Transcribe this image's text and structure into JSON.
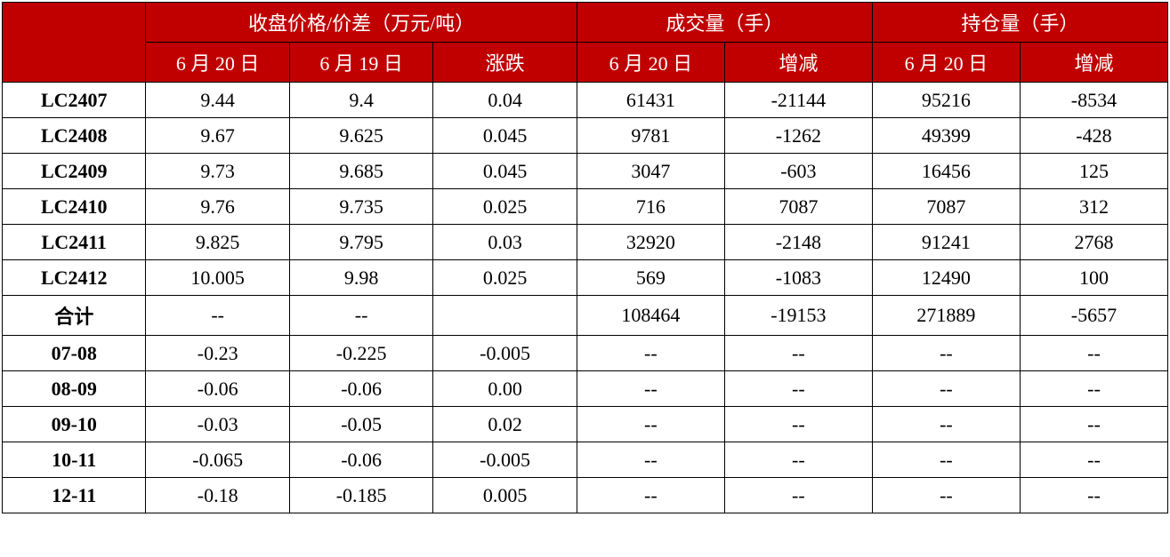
{
  "table": {
    "header_bg": "#c00000",
    "header_fg": "#ffffff",
    "border_color": "#000000",
    "font_family": "SimSun",
    "groups": [
      {
        "label": "收盘价格/价差（万元/吨）",
        "span": 3
      },
      {
        "label": "成交量（手）",
        "span": 2
      },
      {
        "label": "持仓量（手）",
        "span": 2
      }
    ],
    "sub_headers": [
      "6 月 20 日",
      "6 月 19 日",
      "涨跌",
      "6 月 20 日",
      "增减",
      "6 月 20 日",
      "增减"
    ],
    "rows": [
      {
        "label": "LC2407",
        "cells": [
          "9.44",
          "9.4",
          "0.04",
          "61431",
          "-21144",
          "95216",
          "-8534"
        ]
      },
      {
        "label": "LC2408",
        "cells": [
          "9.67",
          "9.625",
          "0.045",
          "9781",
          "-1262",
          "49399",
          "-428"
        ]
      },
      {
        "label": "LC2409",
        "cells": [
          "9.73",
          "9.685",
          "0.045",
          "3047",
          "-603",
          "16456",
          "125"
        ]
      },
      {
        "label": "LC2410",
        "cells": [
          "9.76",
          "9.735",
          "0.025",
          "716",
          "7087",
          "7087",
          "312"
        ]
      },
      {
        "label": "LC2411",
        "cells": [
          "9.825",
          "9.795",
          "0.03",
          "32920",
          "-2148",
          "91241",
          "2768"
        ]
      },
      {
        "label": "LC2412",
        "cells": [
          "10.005",
          "9.98",
          "0.025",
          "569",
          "-1083",
          "12490",
          "100"
        ]
      },
      {
        "label": "合计",
        "cells": [
          "--",
          "--",
          "",
          "108464",
          "-19153",
          "271889",
          "-5657"
        ]
      },
      {
        "label": "07-08",
        "cells": [
          "-0.23",
          "-0.225",
          "-0.005",
          "--",
          "--",
          "--",
          "--"
        ]
      },
      {
        "label": "08-09",
        "cells": [
          "-0.06",
          "-0.06",
          "0.00",
          "--",
          "--",
          "--",
          "--"
        ]
      },
      {
        "label": "09-10",
        "cells": [
          "-0.03",
          "-0.05",
          "0.02",
          "--",
          "--",
          "--",
          "--"
        ]
      },
      {
        "label": "10-11",
        "cells": [
          "-0.065",
          "-0.06",
          "-0.005",
          "--",
          "--",
          "--",
          "--"
        ]
      },
      {
        "label": "12-11",
        "cells": [
          "-0.18",
          "-0.185",
          "0.005",
          "--",
          "--",
          "--",
          "--"
        ]
      }
    ]
  }
}
